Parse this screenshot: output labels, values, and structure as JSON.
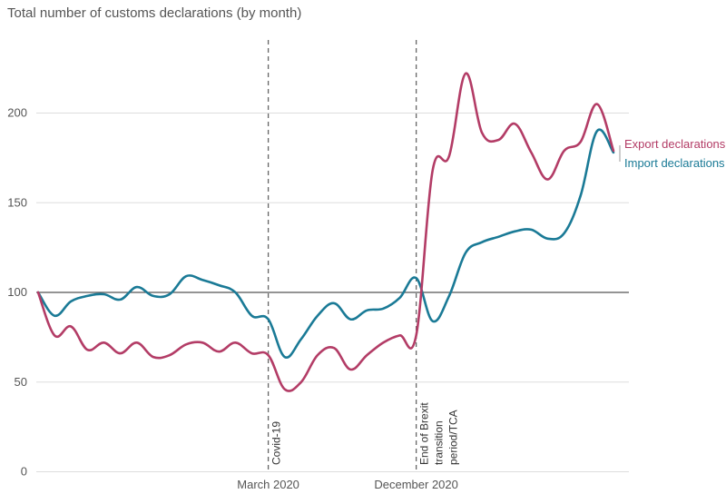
{
  "chart_data": {
    "type": "line",
    "title": "Total number of customs declarations (by month)",
    "xlabel": "",
    "ylabel": "",
    "ylim": [
      0,
      225
    ],
    "y_ticks": [
      0,
      50,
      100,
      150,
      200
    ],
    "x_index_range": [
      0,
      35
    ],
    "x_tick_labels": [
      {
        "x": 14,
        "label": "March 2020"
      },
      {
        "x": 23,
        "label": "December 2020"
      }
    ],
    "reference_line": {
      "y": 100
    },
    "event_lines": [
      {
        "x": 14,
        "lines": [
          "Covid-19"
        ]
      },
      {
        "x": 23,
        "lines": [
          "End of Brexit",
          "transition",
          "period/TCA"
        ]
      }
    ],
    "grid": true,
    "legend_position": "right",
    "series": [
      {
        "name": "Export declarations",
        "color": "#b33c66",
        "values": [
          100,
          76,
          81,
          68,
          72,
          66,
          72,
          64,
          65,
          71,
          72,
          67,
          72,
          66,
          65,
          46,
          50,
          65,
          69,
          57,
          65,
          72,
          76,
          76,
          168,
          176,
          222,
          189,
          185,
          194,
          178,
          163,
          179,
          184,
          205,
          179
        ]
      },
      {
        "name": "Import declarations",
        "color": "#1a7a96",
        "values": [
          100,
          87,
          95,
          98,
          99,
          96,
          103,
          98,
          99,
          109,
          107,
          104,
          100,
          87,
          85,
          64,
          74,
          87,
          94,
          85,
          90,
          91,
          97,
          108,
          84,
          98,
          122,
          128,
          131,
          134,
          135,
          130,
          133,
          154,
          190,
          178
        ]
      }
    ]
  }
}
